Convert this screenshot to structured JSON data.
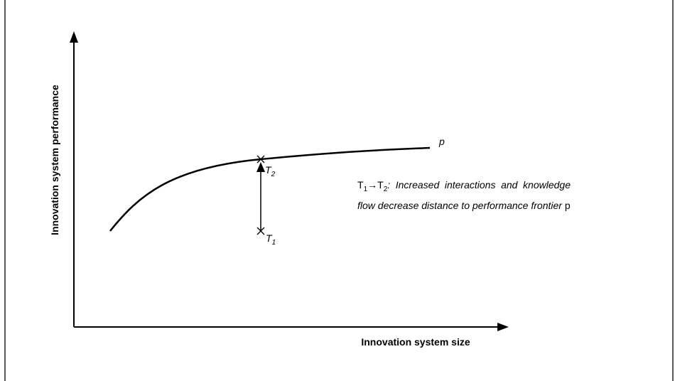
{
  "y_axis_label": "Innovation system performance",
  "x_axis_label": "Innovation system size",
  "curve_label": "p",
  "point_labels": [
    {
      "letter": "T",
      "sub": "1"
    },
    {
      "letter": "T",
      "sub": "2"
    }
  ],
  "annotation": {
    "parts": [
      "T",
      "1",
      "→",
      "T",
      "2",
      ": Increased interactions and knowledge flow decrease distance to performance frontier",
      "p"
    ]
  }
}
